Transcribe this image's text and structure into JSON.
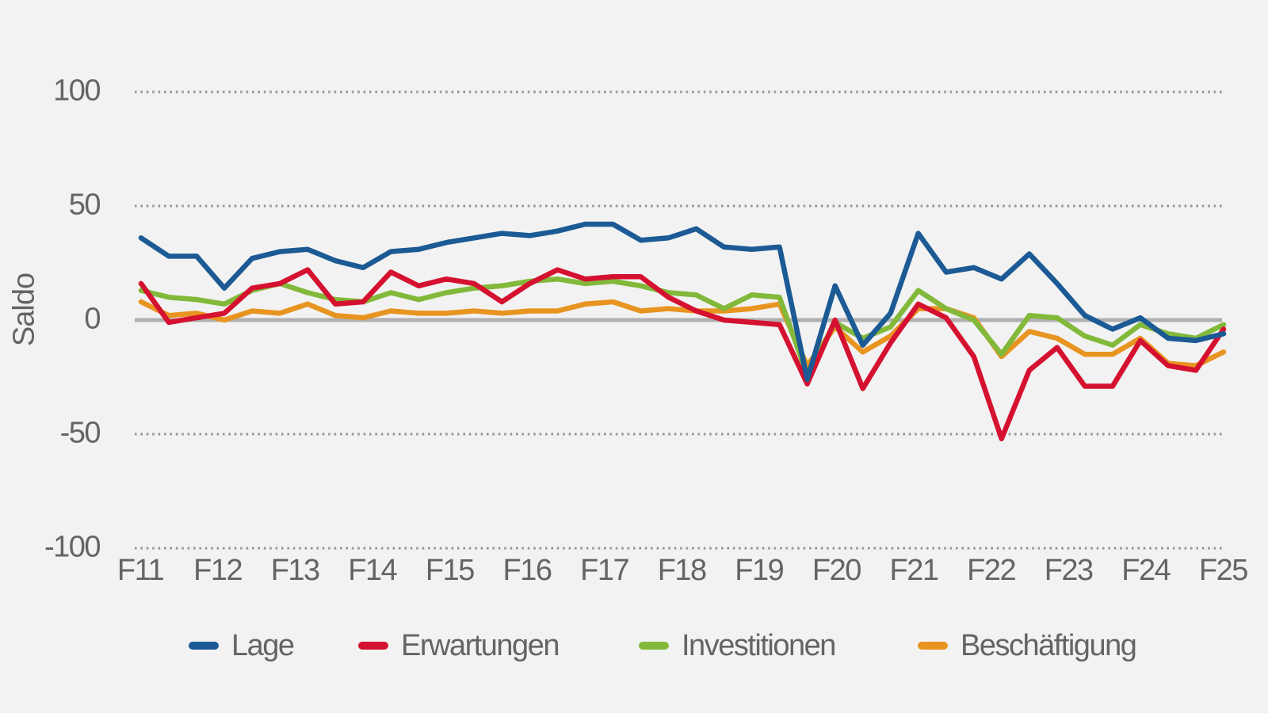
{
  "chart_data": {
    "type": "line",
    "title": "",
    "ylabel": "Saldo",
    "ylim": [
      -100,
      100
    ],
    "yticks": [
      100,
      50,
      0,
      -50,
      -100
    ],
    "ytick_labels": [
      "100",
      "50",
      "0",
      "-50",
      "-100"
    ],
    "x_tick_labels": [
      "F11",
      "F12",
      "F13",
      "F14",
      "F15",
      "F16",
      "F17",
      "F18",
      "F19",
      "F20",
      "F21",
      "F22",
      "F23",
      "F24",
      "F25"
    ],
    "grid": {
      "dotted_at": [
        100,
        50,
        -50,
        -100
      ],
      "solid_zero_line": true
    },
    "legend_position": "bottom",
    "colors": {
      "lage": "#1b5a94",
      "erwartungen": "#d51130",
      "investitionen": "#82b93a",
      "beschaeftigung": "#e89420",
      "zero_line": "#b0b0b0",
      "grid_dots": "#949494",
      "text": "#646464",
      "background": "#f2f2f2"
    },
    "series": [
      {
        "name": "Lage",
        "color": "#1b5a94",
        "values": [
          36,
          28,
          28,
          14,
          27,
          30,
          31,
          26,
          23,
          30,
          31,
          34,
          36,
          38,
          37,
          39,
          42,
          42,
          35,
          36,
          40,
          32,
          31,
          32,
          -26,
          15,
          -11,
          3,
          38,
          21,
          23,
          18,
          29,
          16,
          2,
          -4,
          1,
          -8,
          -9,
          -6
        ]
      },
      {
        "name": "Erwartungen",
        "color": "#d51130",
        "values": [
          16,
          -1,
          1,
          3,
          14,
          16,
          22,
          7,
          8,
          21,
          15,
          18,
          16,
          8,
          16,
          22,
          18,
          19,
          19,
          10,
          4,
          0,
          -1,
          -2,
          -28,
          0,
          -30,
          -10,
          7,
          1,
          -16,
          -52,
          -22,
          -12,
          -29,
          -29,
          -9,
          -20,
          -22,
          -4
        ]
      },
      {
        "name": "Investitionen",
        "color": "#82b93a",
        "values": [
          13,
          10,
          9,
          7,
          13,
          16,
          12,
          9,
          8,
          12,
          9,
          12,
          14,
          15,
          17,
          18,
          16,
          17,
          15,
          12,
          11,
          5,
          11,
          10,
          -24,
          -1,
          -8,
          -3,
          13,
          5,
          0,
          -15,
          2,
          1,
          -7,
          -11,
          -2,
          -6,
          -8,
          -2
        ]
      },
      {
        "name": "Beschäftigung",
        "color": "#e89420",
        "values": [
          8,
          2,
          3,
          0,
          4,
          3,
          7,
          2,
          1,
          4,
          3,
          3,
          4,
          3,
          4,
          4,
          7,
          8,
          4,
          5,
          4,
          4,
          5,
          7,
          -20,
          -3,
          -14,
          -7,
          5,
          5,
          1,
          -16,
          -5,
          -8,
          -15,
          -15,
          -8,
          -19,
          -20,
          -14
        ]
      }
    ]
  },
  "legend": {
    "items": [
      {
        "label": "Lage",
        "color": "#1b5a94"
      },
      {
        "label": "Erwartungen",
        "color": "#d51130"
      },
      {
        "label": "Investitionen",
        "color": "#82b93a"
      },
      {
        "label": "Beschäftigung",
        "color": "#e89420"
      }
    ]
  }
}
